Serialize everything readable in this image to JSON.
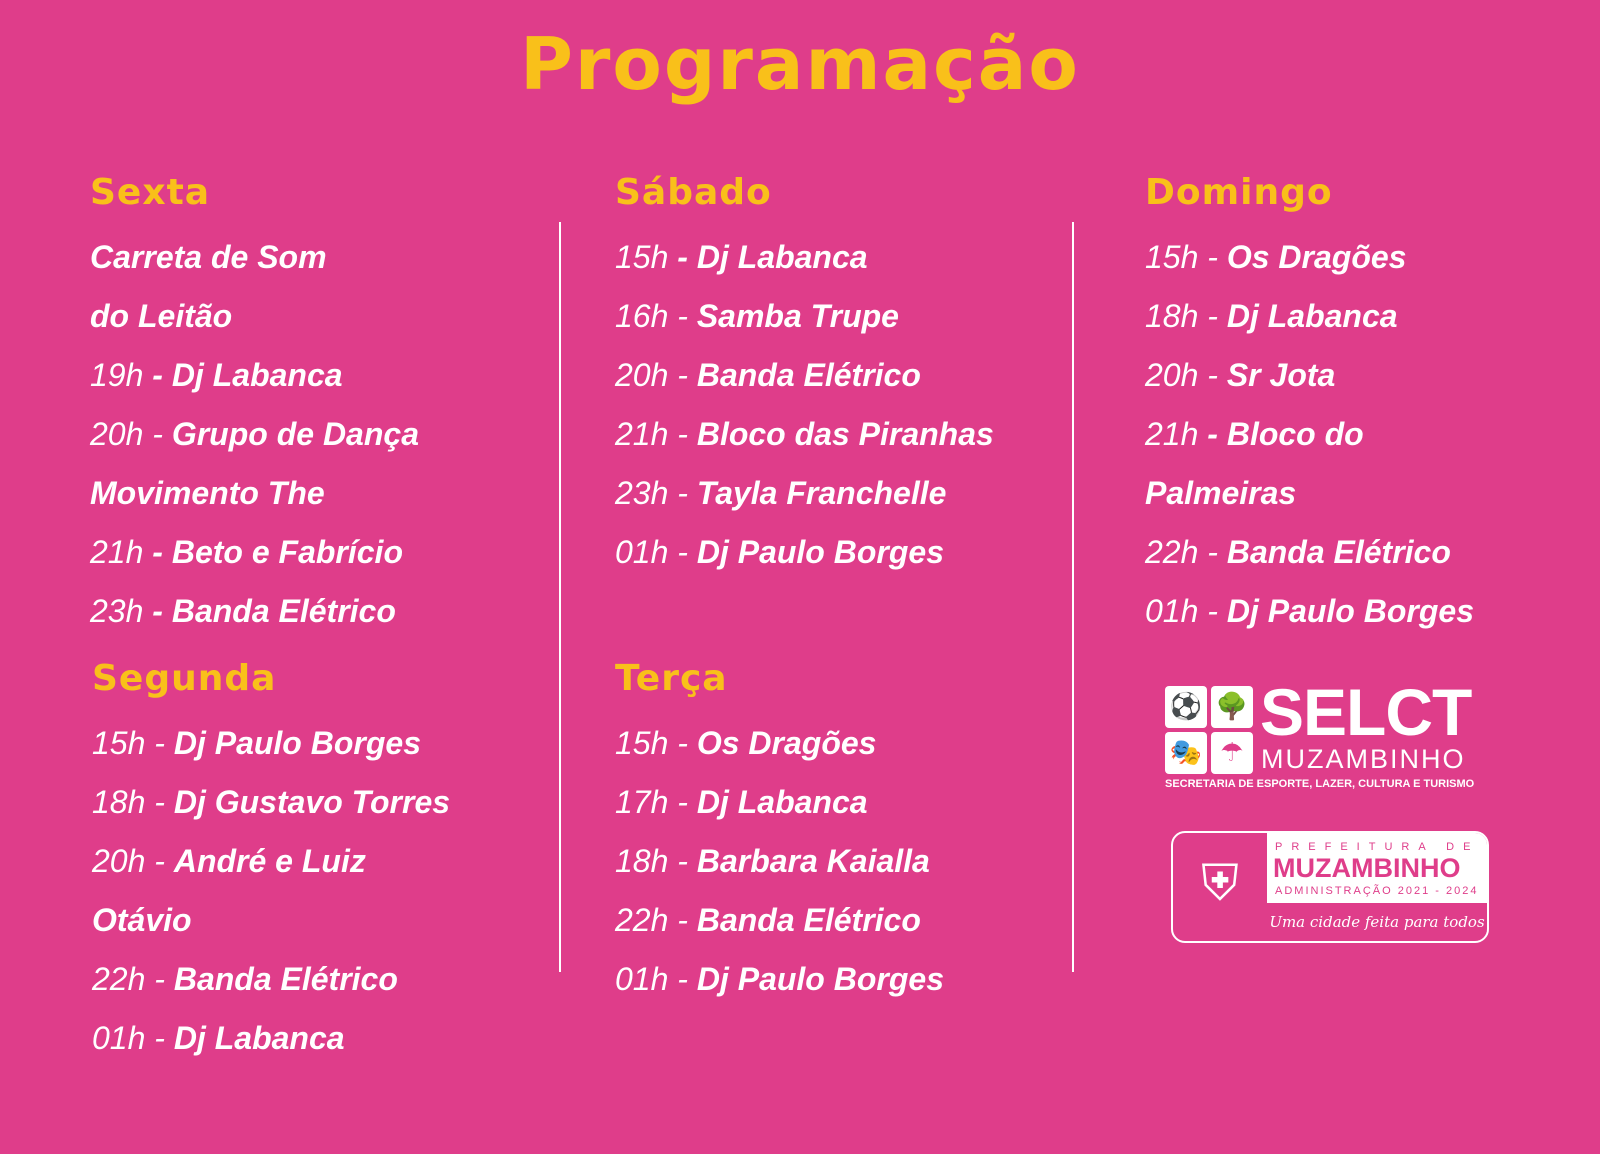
{
  "title": "Programação",
  "colors": {
    "background": "#df3d8a",
    "accent": "#f9c01a",
    "text": "#ffffff"
  },
  "days": [
    {
      "name": "Sexta",
      "lines": [
        {
          "time": "",
          "name": "Carreta de Som"
        },
        {
          "time": "",
          "name": "do Leitão"
        },
        {
          "time": "19h ",
          "name": "- Dj Labanca"
        },
        {
          "time": "20h - ",
          "name": "Grupo de Dança"
        },
        {
          "time": "",
          "name": "Movimento The"
        },
        {
          "time": "21h ",
          "name": "- Beto e Fabrício"
        },
        {
          "time": "23h ",
          "name": "- Banda Elétrico"
        }
      ]
    },
    {
      "name": "Sábado",
      "lines": [
        {
          "time": "15h ",
          "name": "- Dj Labanca"
        },
        {
          "time": "16h - ",
          "name": "Samba Trupe"
        },
        {
          "time": "20h - ",
          "name": "Banda Elétrico"
        },
        {
          "time": "21h - ",
          "name": "Bloco das Piranhas"
        },
        {
          "time": "23h - ",
          "name": "Tayla Franchelle"
        },
        {
          "time": "01h - ",
          "name": "Dj Paulo Borges"
        }
      ]
    },
    {
      "name": "Domingo",
      "lines": [
        {
          "time": "15h - ",
          "name": "Os Dragões"
        },
        {
          "time": "18h - ",
          "name": "Dj Labanca"
        },
        {
          "time": "20h - ",
          "name": "Sr Jota"
        },
        {
          "time": "21h ",
          "name": "- Bloco do"
        },
        {
          "time": "",
          "name": "Palmeiras"
        },
        {
          "time": "22h - ",
          "name": "Banda Elétrico"
        },
        {
          "time": "01h - ",
          "name": "Dj Paulo Borges"
        }
      ]
    },
    {
      "name": "Segunda",
      "lines": [
        {
          "time": "15h - ",
          "name": "Dj Paulo Borges"
        },
        {
          "time": "18h - ",
          "name": "Dj Gustavo Torres"
        },
        {
          "time": "20h - ",
          "name": "André e Luiz"
        },
        {
          "time": "",
          "name": "Otávio"
        },
        {
          "time": "22h - ",
          "name": "Banda Elétrico"
        },
        {
          "time": "01h - ",
          "name": "Dj Labanca"
        }
      ]
    },
    {
      "name": "Terça",
      "lines": [
        {
          "time": "15h - ",
          "name": "Os Dragões"
        },
        {
          "time": "17h - ",
          "name": "Dj Labanca"
        },
        {
          "time": "18h - ",
          "name": "Barbara Kaialla"
        },
        {
          "time": "22h - ",
          "name": "Banda Elétrico"
        },
        {
          "time": "01h - ",
          "name": "Dj Paulo Borges"
        }
      ]
    }
  ],
  "logos": {
    "selct": {
      "name": "SELCT",
      "city": "MUZAMBINHO",
      "subtitle": "SECRETARIA DE ESPORTE, LAZER, CULTURA E TURISMO",
      "icons": [
        "soccer-icon",
        "park-bench-icon",
        "theater-masks-icon",
        "umbrella-icon"
      ]
    },
    "prefeitura": {
      "top": "PREFEITURA DE",
      "city": "MUZAMBINHO",
      "admin": "ADMINISTRAÇÃO 2021 - 2024",
      "slogan": "Uma cidade feita para todos"
    }
  }
}
